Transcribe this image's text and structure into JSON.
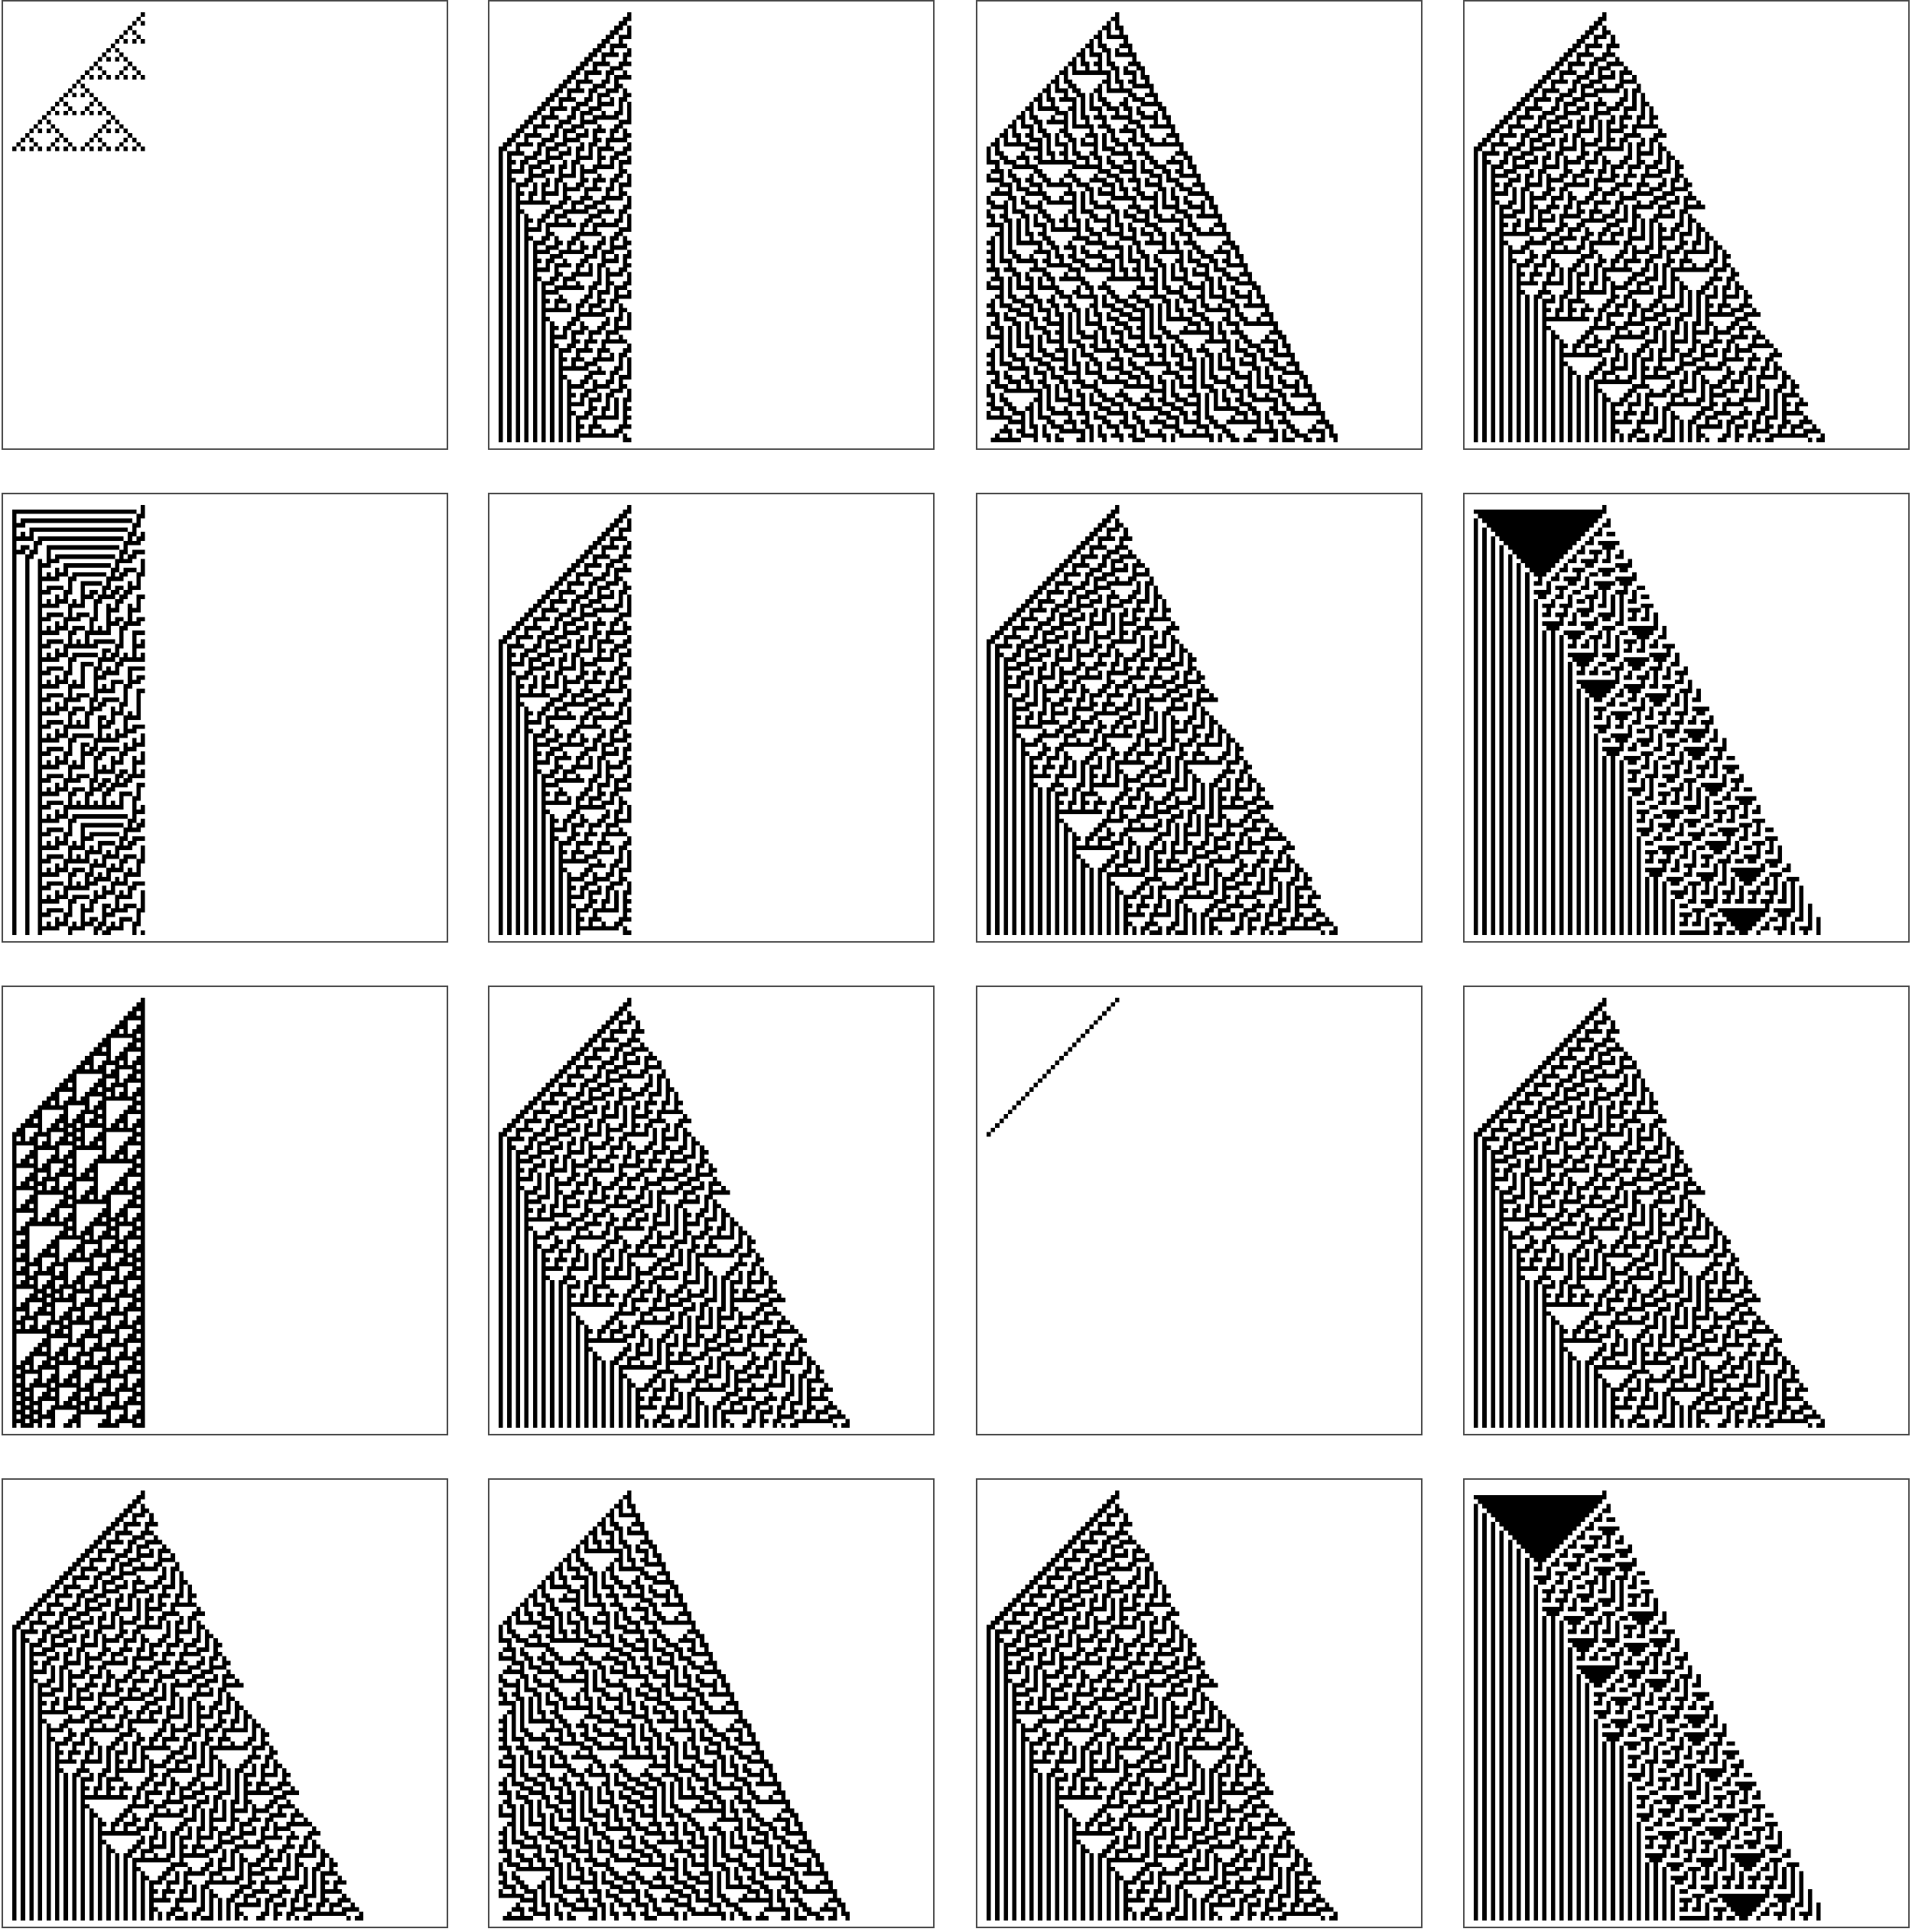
{
  "figure": {
    "description_kind": "cellular-automaton-evolutions",
    "colors": {
      "cell_on": "#000000",
      "cell_off": "#ffffff",
      "frame": "#4d4d4d"
    },
    "panels": [
      {
        "id": "r1c1",
        "rule": 90,
        "edge": "vertical",
        "steps": 96
      },
      {
        "id": "r1c2",
        "rule": 30,
        "edge": "vertical",
        "steps": 96
      },
      {
        "id": "r1c3",
        "rule": 86,
        "edge": "diagonal",
        "steps": 96
      },
      {
        "id": "r1c4",
        "rule": 30,
        "edge": "diagonal",
        "steps": 96
      },
      {
        "id": "r2c1",
        "rule": 45,
        "edge": "vertical",
        "steps": 96
      },
      {
        "id": "r2c2",
        "rule": 30,
        "edge": "vertical",
        "steps": 96
      },
      {
        "id": "r2c3",
        "rule": 30,
        "edge": "diagonal",
        "steps": 96
      },
      {
        "id": "r2c4",
        "rule": 135,
        "edge": "diagonal",
        "steps": 96
      },
      {
        "id": "r3c1",
        "rule": 110,
        "edge": "diagonal",
        "steps": 96
      },
      {
        "id": "r3c2",
        "rule": 30,
        "edge": "diagonal",
        "steps": 96
      },
      {
        "id": "r3c3",
        "rule": 106,
        "edge": "diagonal",
        "steps": 96
      },
      {
        "id": "r3c4",
        "rule": 30,
        "edge": "diagonal",
        "steps": 96
      },
      {
        "id": "r4c1",
        "rule": 30,
        "edge": "diagonal",
        "steps": 96
      },
      {
        "id": "r4c2",
        "rule": 86,
        "edge": "diagonal",
        "steps": 96
      },
      {
        "id": "r4c3",
        "rule": 30,
        "edge": "diagonal",
        "steps": 96
      },
      {
        "id": "r4c4",
        "rule": 135,
        "edge": "diagonal",
        "steps": 96
      }
    ]
  }
}
